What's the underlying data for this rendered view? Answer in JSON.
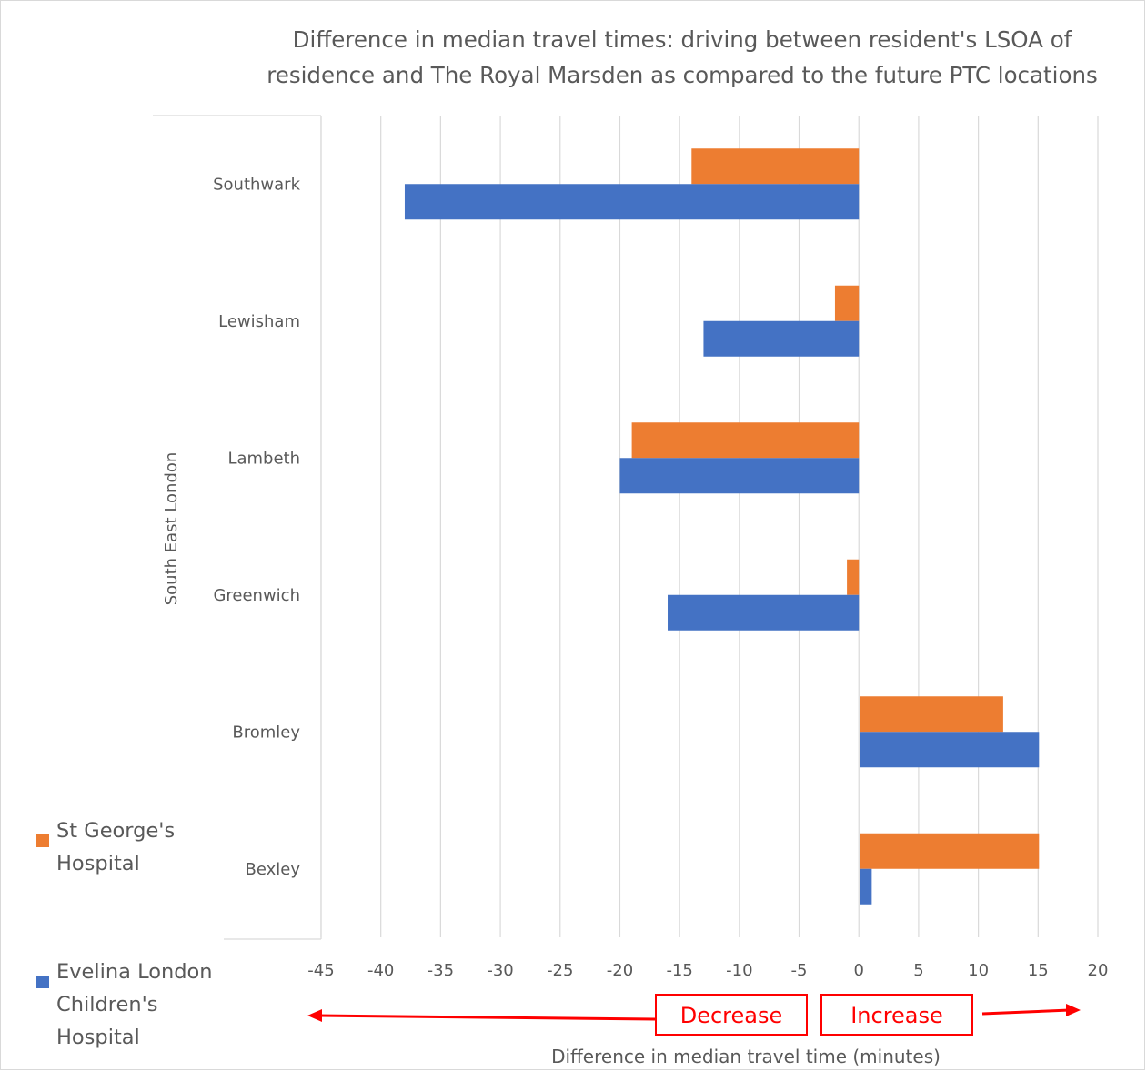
{
  "chart_data": {
    "type": "bar",
    "orientation": "horizontal",
    "title": "Difference in median travel times: driving between resident's LSOA of residence and The Royal Marsden as compared to the future PTC locations",
    "title_lines": [
      "Difference in median travel times: driving between resident's LSOA of",
      "residence and The Royal Marsden as compared to the future PTC locations"
    ],
    "xlabel": "Difference in median travel time (minutes)",
    "group_label": "South East London",
    "categories": [
      "Southwark",
      "Lewisham",
      "Lambeth",
      "Greenwich",
      "Bromley",
      "Bexley"
    ],
    "series": [
      {
        "name": "St George's Hospital",
        "name_lines": [
          "St George's",
          "Hospital"
        ],
        "color": "#ed7d31",
        "values": [
          -14,
          -2,
          -19,
          -1,
          12,
          15
        ]
      },
      {
        "name": "Evelina London Children's Hospital",
        "name_lines": [
          "Evelina London",
          "Children's",
          "Hospital"
        ],
        "color": "#4472c4",
        "values": [
          -38,
          -13,
          -20,
          -16,
          15,
          1
        ]
      }
    ],
    "xlim": [
      -45,
      20
    ],
    "x_ticks": [
      "-45",
      "-40",
      "-35",
      "-30",
      "-25",
      "-20",
      "-15",
      "-10",
      "-5",
      "0",
      "5",
      "10",
      "15",
      "20"
    ],
    "grid": true,
    "legend_position": "bottom-left",
    "annotations": {
      "decrease": "Decrease",
      "increase": "Increase",
      "arrow_color": "#ff0000"
    }
  }
}
